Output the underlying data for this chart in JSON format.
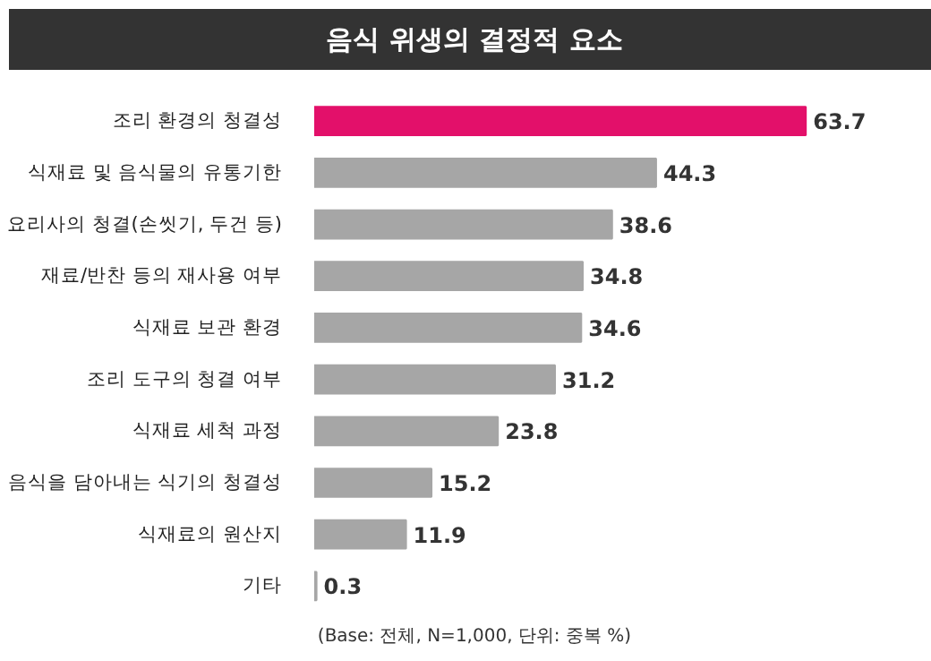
{
  "chart_data": {
    "type": "bar",
    "orientation": "horizontal",
    "title": "음식 위생의 결정적 요소",
    "categories": [
      "조리 환경의 청결성",
      "식재료 및 음식물의 유통기한",
      "요리사의 청결(손씻기, 두건 등)",
      "재료/반찬 등의 재사용 여부",
      "식재료 보관 환경",
      "조리 도구의 청결 여부",
      "식재료 세척 과정",
      "음식을 담아내는 식기의 청결성",
      "식재료의 원산지",
      "기타"
    ],
    "values": [
      63.7,
      44.3,
      38.6,
      34.8,
      34.6,
      31.2,
      23.8,
      15.2,
      11.9,
      0.3
    ],
    "colors": [
      "#e3106a",
      "#a6a6a6",
      "#a6a6a6",
      "#a6a6a6",
      "#a6a6a6",
      "#a6a6a6",
      "#a6a6a6",
      "#a6a6a6",
      "#a6a6a6",
      "#a6a6a6"
    ],
    "data_labels": true,
    "annotations": [
      "(Base: 전체, N=1,000, 단위: 중복 %)"
    ]
  }
}
